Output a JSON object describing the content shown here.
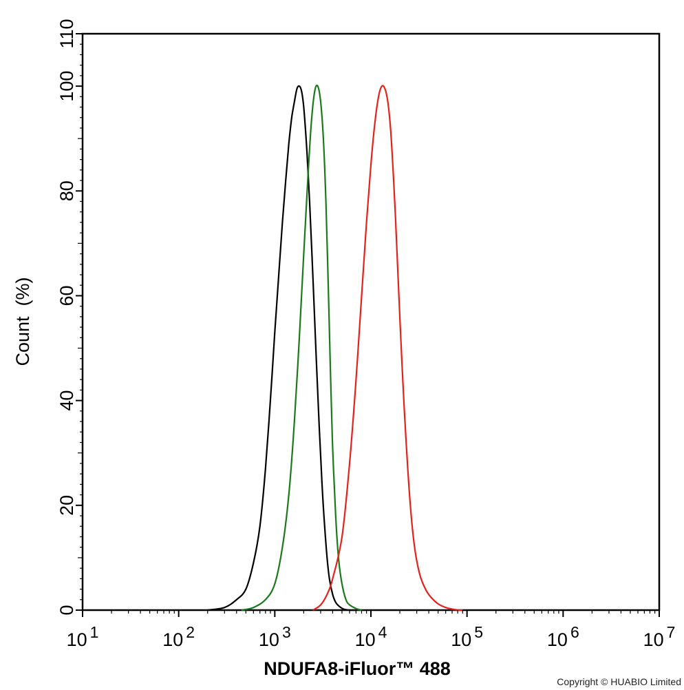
{
  "chart_data": {
    "type": "line",
    "title": "",
    "xlabel": "NDUFA8-iFluor™ 488",
    "ylabel": "Count  (%)",
    "xscale": "log",
    "xlim": [
      10,
      10000000
    ],
    "ylim": [
      0,
      110
    ],
    "x_ticks": [
      {
        "base": "10",
        "exp": "1"
      },
      {
        "base": "10",
        "exp": "2"
      },
      {
        "base": "10",
        "exp": "3"
      },
      {
        "base": "10",
        "exp": "4"
      },
      {
        "base": "10",
        "exp": "5"
      },
      {
        "base": "10",
        "exp": "6"
      },
      {
        "base": "10",
        "exp": "7"
      }
    ],
    "y_ticks": [
      "0",
      "20",
      "40",
      "60",
      "80",
      "100",
      "110"
    ],
    "grid": false,
    "legend": "none",
    "series": [
      {
        "color": "#000000",
        "x": [
          200,
          300,
          400,
          500,
          600,
          700,
          800,
          900,
          1000,
          1100,
          1200,
          1300,
          1400,
          1500,
          1600,
          1700,
          1800,
          1900,
          2000,
          2150,
          2300,
          2500,
          2700,
          2900,
          3100,
          3300,
          3500,
          3700,
          4000,
          4300,
          4700,
          5200,
          6000,
          7000
        ],
        "y": [
          0,
          0.5,
          2,
          4,
          9,
          16,
          27,
          40,
          53,
          64,
          74,
          82,
          89,
          94,
          97,
          99.5,
          100,
          99,
          96,
          88,
          78,
          63,
          48,
          35,
          24,
          16,
          10,
          6,
          3,
          1.5,
          0.7,
          0.2,
          0,
          0
        ]
      },
      {
        "color": "#1a7a1a",
        "x": [
          450,
          600,
          800,
          1000,
          1200,
          1400,
          1600,
          1800,
          2000,
          2200,
          2400,
          2600,
          2800,
          3000,
          3200,
          3400,
          3600,
          3800,
          4000,
          4300,
          4600,
          5000,
          5500,
          6000,
          7000,
          8000
        ],
        "y": [
          0,
          0.5,
          2,
          5,
          12,
          22,
          36,
          52,
          68,
          82,
          93,
          99,
          100,
          97,
          90,
          78,
          62,
          45,
          31,
          18,
          10,
          5,
          2,
          1,
          0.3,
          0
        ]
      },
      {
        "color": "#e8201a",
        "x": [
          2500,
          3000,
          3500,
          4000,
          5000,
          6000,
          7000,
          8000,
          9000,
          10000,
          11000,
          12000,
          13000,
          14000,
          15000,
          16000,
          17000,
          18000,
          20000,
          22000,
          25000,
          28000,
          32000,
          37000,
          42000,
          50000,
          60000,
          75000,
          90000
        ],
        "y": [
          0,
          1,
          3,
          6,
          14,
          28,
          44,
          60,
          74,
          85,
          93,
          98,
          100,
          99.5,
          97,
          92,
          84,
          75,
          56,
          40,
          23,
          13,
          7,
          4,
          2.5,
          1.2,
          0.5,
          0.1,
          0
        ]
      }
    ]
  },
  "footer": {
    "copyright": "Copyright © HUABIO Limited"
  }
}
